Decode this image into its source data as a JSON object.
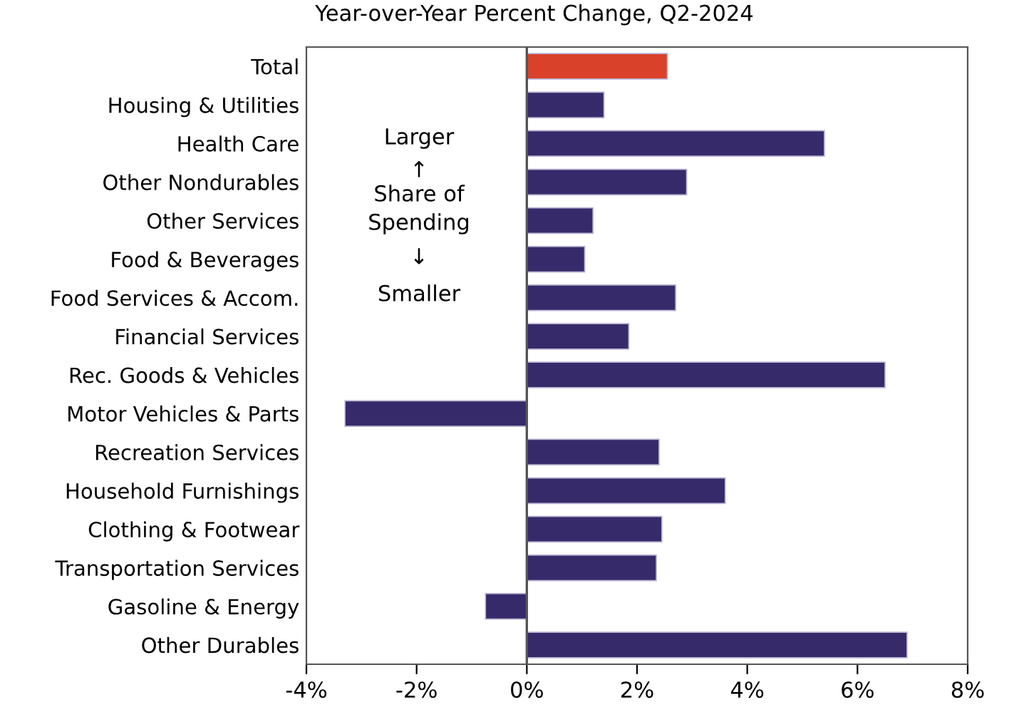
{
  "chart_data": {
    "type": "bar",
    "orientation": "horizontal",
    "subtitle": "Year-over-Year Percent Change, Q2-2024",
    "categories": [
      "Total",
      "Housing & Utilities",
      "Health Care",
      "Other Nondurables",
      "Other Services",
      "Food & Beverages",
      "Food Services & Accom.",
      "Financial Services",
      "Rec. Goods & Vehicles",
      "Motor Vehicles & Parts",
      "Recreation Services",
      "Household Furnishings",
      "Clothing & Footwear",
      "Transportation Services",
      "Gasoline & Energy",
      "Other Durables"
    ],
    "values": [
      2.55,
      1.4,
      5.4,
      2.9,
      1.2,
      1.05,
      2.7,
      1.85,
      6.5,
      -3.3,
      2.4,
      3.6,
      2.45,
      2.35,
      -0.75,
      6.9
    ],
    "colors": [
      "#d9412a",
      "#362a6a",
      "#362a6a",
      "#362a6a",
      "#362a6a",
      "#362a6a",
      "#362a6a",
      "#362a6a",
      "#362a6a",
      "#362a6a",
      "#362a6a",
      "#362a6a",
      "#362a6a",
      "#362a6a",
      "#362a6a",
      "#362a6a"
    ],
    "xlim": [
      -4,
      8
    ],
    "xticks": [
      {
        "value": -4,
        "label": "-4%"
      },
      {
        "value": -2,
        "label": "-2%"
      },
      {
        "value": 0,
        "label": "0%"
      },
      {
        "value": 2,
        "label": "2%"
      },
      {
        "value": 4,
        "label": "4%"
      },
      {
        "value": 6,
        "label": "6%"
      },
      {
        "value": 8,
        "label": "8%"
      }
    ],
    "annotations": [
      "Larger",
      "↑",
      "Share of",
      "Spending",
      "↓",
      "Smaller"
    ],
    "ref_lines": [
      {
        "axis": "x",
        "value": 0,
        "color": "#555555"
      }
    ]
  }
}
